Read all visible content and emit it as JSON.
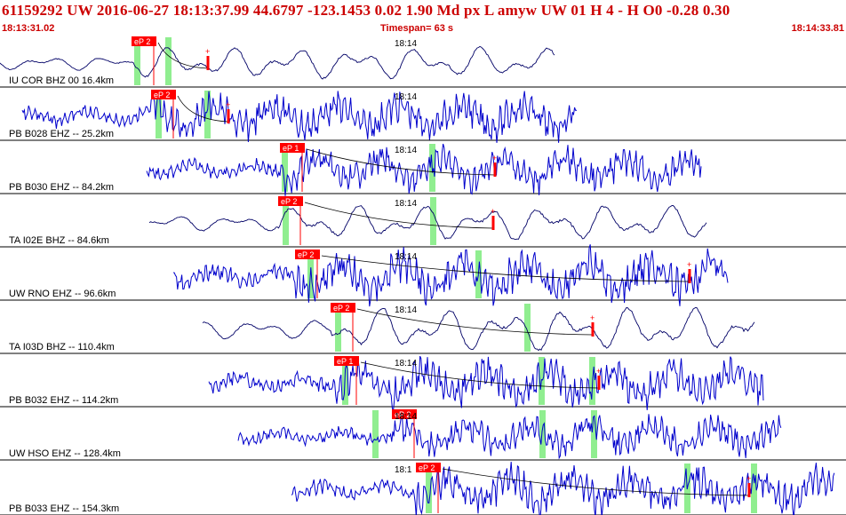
{
  "header": {
    "event_line": "61159292 UW 2016-06-27 18:13:37.99   44.6797 -123.1453   0.02  1.90 Md  px  L amyw     UW 01  H   4  -  H O0   -0.28  0.30",
    "start_time": "18:13:31.02",
    "timespan": "Timespan=  63 s",
    "end_time": "18:14:33.81"
  },
  "colors": {
    "accent": "#cc0000",
    "pick_bg": "#ff0000",
    "phase_band": "#90ee90",
    "trace_blue": "#0000cc",
    "trace_navy": "#000066",
    "separator": "#000000"
  },
  "panels": [
    {
      "label": "IU COR BHZ 00 16.4km",
      "time": "18:14",
      "pick": "eP 2",
      "color": "navy"
    },
    {
      "label": "PB B028 EHZ -- 25.2km",
      "time": "18:14",
      "pick": "eP 2",
      "color": "blue"
    },
    {
      "label": "PB B030 EHZ -- 84.2km",
      "time": "18:14",
      "pick": "eP 1",
      "color": "blue"
    },
    {
      "label": "TA I02E BHZ -- 84.6km",
      "time": "18:14",
      "pick": "eP 2",
      "color": "navy"
    },
    {
      "label": "UW RNO EHZ -- 96.6km",
      "time": "18:14",
      "pick": "eP 2",
      "color": "blue"
    },
    {
      "label": "TA I03D BHZ -- 110.4km",
      "time": "18:14",
      "pick": "eP 2",
      "color": "navy"
    },
    {
      "label": "PB B032 EHZ -- 114.2km",
      "time": "18:14",
      "pick": "eP 1",
      "color": "blue"
    },
    {
      "label": "UW HSO EHZ -- 128.4km",
      "time": "18:14",
      "pick": "eP 2",
      "color": "blue"
    },
    {
      "label": "PB B033 EHZ -- 154.3km",
      "time": "18:1",
      "pick": "eP 2",
      "color": "blue"
    }
  ]
}
